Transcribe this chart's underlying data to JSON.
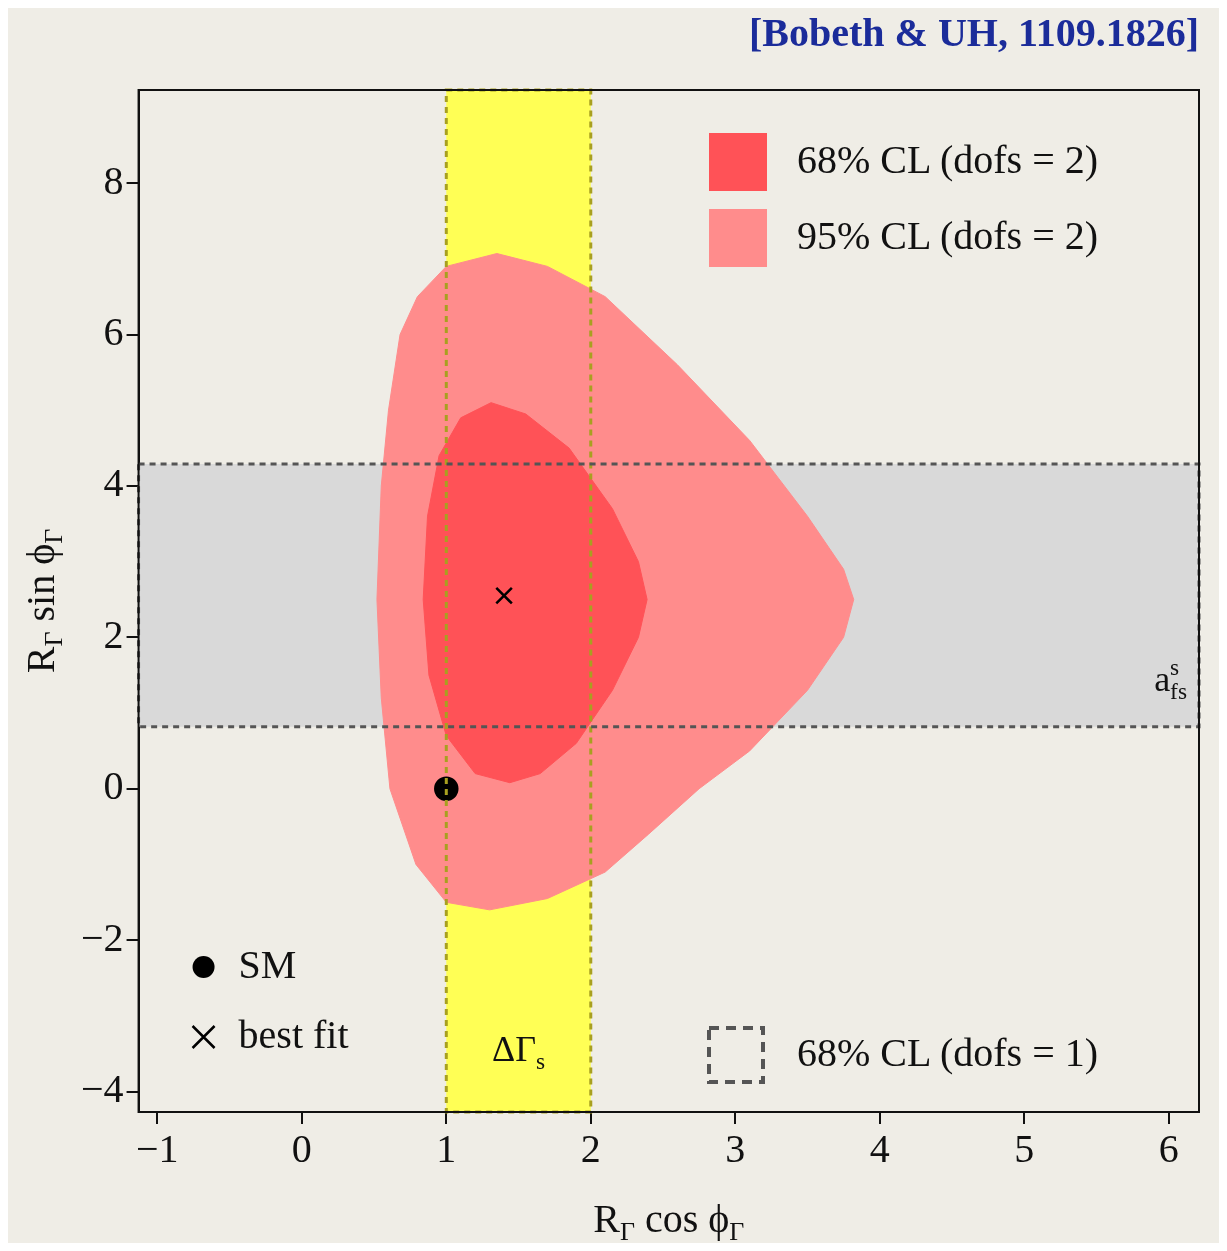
{
  "chart_data": {
    "type": "area",
    "title": "[Bobeth & UH, 1109.1826]",
    "xlabel": "R$_{Γ}$ cos ϕ$_{Γ}$",
    "ylabel": "R$_{Γ}$ sin ϕ$_{Γ}$",
    "xlim": [
      -1.13,
      6.21
    ],
    "ylim": [
      -4.27,
      9.23
    ],
    "xticks": [
      -1,
      0,
      1,
      2,
      3,
      4,
      5,
      6
    ],
    "yticks": [
      -4,
      -2,
      0,
      2,
      4,
      6,
      8
    ],
    "grid": false,
    "legend": "top right",
    "series": [
      {
        "name": "95% CL (dofs = 2)",
        "color": "#ff8c8c",
        "x": [
          0.52,
          0.55,
          0.6,
          0.68,
          0.8,
          1.0,
          1.35,
          1.7,
          2.1,
          2.6,
          3.1,
          3.5,
          3.75,
          3.82,
          3.75,
          3.5,
          3.1,
          2.75,
          2.4,
          2.1,
          1.7,
          1.3,
          1.0,
          0.79,
          0.61,
          0.55,
          0.52
        ],
        "values": [
          2.5,
          4.0,
          5.0,
          6.0,
          6.5,
          6.9,
          7.07,
          6.9,
          6.5,
          5.6,
          4.6,
          3.6,
          2.9,
          2.5,
          2.0,
          1.3,
          0.5,
          0.0,
          -0.6,
          -1.1,
          -1.45,
          -1.6,
          -1.5,
          -1.0,
          0.0,
          1.2,
          2.5
        ]
      },
      {
        "name": "68% CL (dofs = 2)",
        "color": "#ff5257",
        "x": [
          0.84,
          0.87,
          0.95,
          1.1,
          1.31,
          1.55,
          1.85,
          2.15,
          2.33,
          2.39,
          2.33,
          2.15,
          1.9,
          1.65,
          1.44,
          1.2,
          1.0,
          0.88,
          0.84
        ],
        "values": [
          2.5,
          3.6,
          4.4,
          4.9,
          5.1,
          4.95,
          4.5,
          3.7,
          3.0,
          2.5,
          2.0,
          1.3,
          0.6,
          0.2,
          0.08,
          0.2,
          0.7,
          1.5,
          2.5
        ]
      },
      {
        "name": "SM",
        "type": "scatter",
        "marker": "circle",
        "color": "#000000",
        "x": [
          1.0
        ],
        "values": [
          0.0
        ]
      },
      {
        "name": "best fit",
        "type": "scatter",
        "marker": "cross",
        "color": "#000000",
        "x": [
          1.4
        ],
        "values": [
          2.55
        ]
      }
    ],
    "bands": [
      {
        "axis": "x",
        "from": 1.0,
        "to": 2.0,
        "label": "ΔΓ$_{s}$",
        "color": "#ffff55"
      },
      {
        "axis": "y",
        "from": 0.82,
        "to": 4.29,
        "label": "a$^{s}$$_{fs}$",
        "color": "#d9d9d9"
      }
    ],
    "annotations": [
      "68% CL (dofs = 1)"
    ]
  }
}
